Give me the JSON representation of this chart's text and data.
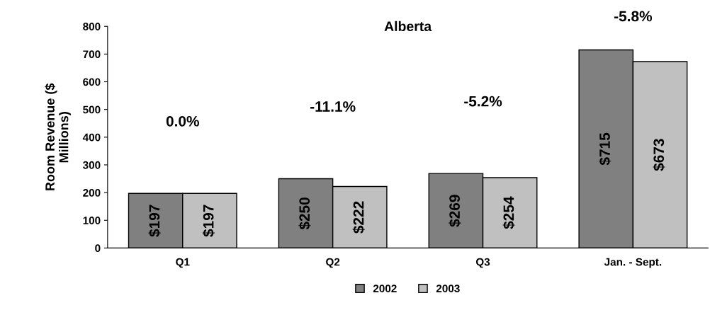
{
  "chart_data": {
    "type": "bar",
    "title": "Alberta",
    "ylabel": "Room Revenue ($\nMillions)",
    "categories": [
      "Q1",
      "Q2",
      "Q3",
      "Jan. - Sept."
    ],
    "series": [
      {
        "name": "2002",
        "color": "#808080",
        "values": [
          197,
          250,
          269,
          715
        ],
        "value_labels": [
          "$197",
          "$250",
          "$269",
          "$715"
        ]
      },
      {
        "name": "2003",
        "color": "#c0c0c0",
        "values": [
          197,
          222,
          254,
          673
        ],
        "value_labels": [
          "$197",
          "$222",
          "$254",
          "$673"
        ]
      }
    ],
    "ylim": [
      0,
      800
    ],
    "yticks": [
      0,
      100,
      200,
      300,
      400,
      500,
      600,
      700,
      800
    ],
    "annotations": [
      "0.0%",
      "-11.1%",
      "-5.2%",
      "-5.8%"
    ],
    "grid": false,
    "legend": "bottom"
  }
}
